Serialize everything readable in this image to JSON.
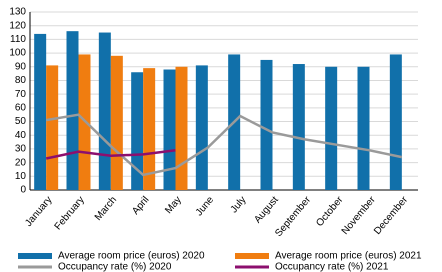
{
  "chart_data": {
    "type": "bar",
    "categories": [
      "January",
      "February",
      "March",
      "April",
      "May",
      "June",
      "July",
      "August",
      "September",
      "October",
      "November",
      "December"
    ],
    "series": [
      {
        "name": "Average room price (euros) 2020",
        "type": "bar",
        "color": "#1170aa",
        "values": [
          114,
          116,
          115,
          86,
          88,
          91,
          99,
          95,
          92,
          90,
          90,
          99
        ]
      },
      {
        "name": "Average room price (euros) 2021",
        "type": "bar",
        "color": "#f07d10",
        "values": [
          91,
          99,
          98,
          89,
          90,
          null,
          null,
          null,
          null,
          null,
          null,
          null
        ]
      },
      {
        "name": "Occupancy rate (%) 2020",
        "type": "line",
        "color": "#9a9a9a",
        "values": [
          51,
          55,
          32,
          11,
          16,
          31,
          54,
          42,
          37,
          33,
          29,
          24
        ]
      },
      {
        "name": "Occupancy rate (%) 2021",
        "type": "line",
        "color": "#8c0f6e",
        "values": [
          23,
          28,
          25,
          26,
          29,
          null,
          null,
          null,
          null,
          null,
          null,
          null
        ]
      }
    ],
    "ylim": [
      0,
      130
    ],
    "yticks": [
      0,
      10,
      20,
      30,
      40,
      50,
      60,
      70,
      80,
      90,
      100,
      110,
      120,
      130
    ],
    "grid": true
  }
}
